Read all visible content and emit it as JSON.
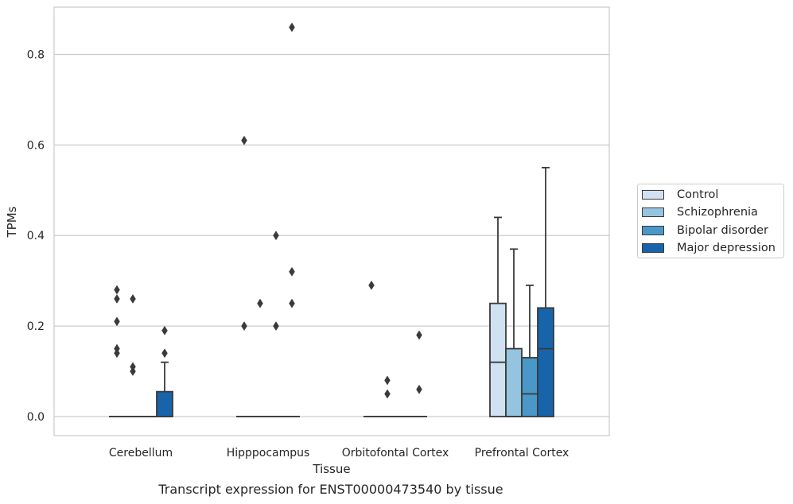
{
  "chart_data": {
    "type": "box",
    "title": "Transcript expression for ENST00000473540 by tissue",
    "xlabel": "Tissue",
    "ylabel": "TPMs",
    "ylim": [
      -0.042,
      0.905
    ],
    "yticks": [
      0.0,
      0.2,
      0.4,
      0.6,
      0.8
    ],
    "ytick_labels": [
      "0.0",
      "0.2",
      "0.4",
      "0.6",
      "0.8"
    ],
    "categories": [
      "Cerebellum",
      "Hipppocampus",
      "Orbitofontal Cortex",
      "Prefrontal Cortex"
    ],
    "grid": "horizontal",
    "legend_position": "right",
    "series": [
      {
        "name": "Control",
        "color": "#d0e1f2",
        "boxes": [
          {
            "q1": 0.0,
            "median": 0.0,
            "q3": 0.0,
            "whisker_low": 0.0,
            "whisker_high": 0.0,
            "outliers": [
              0.28,
              0.26,
              0.21,
              0.15,
              0.14
            ]
          },
          {
            "q1": 0.0,
            "median": 0.0,
            "q3": 0.0,
            "whisker_low": 0.0,
            "whisker_high": 0.0,
            "outliers": [
              0.61,
              0.2
            ]
          },
          {
            "q1": 0.0,
            "median": 0.0,
            "q3": 0.0,
            "whisker_low": 0.0,
            "whisker_high": 0.0,
            "outliers": [
              0.29
            ]
          },
          {
            "q1": 0.0,
            "median": 0.12,
            "q3": 0.25,
            "whisker_low": 0.0,
            "whisker_high": 0.44,
            "outliers": []
          }
        ]
      },
      {
        "name": "Schizophrenia",
        "color": "#94c4df",
        "boxes": [
          {
            "q1": 0.0,
            "median": 0.0,
            "q3": 0.0,
            "whisker_low": 0.0,
            "whisker_high": 0.0,
            "outliers": [
              0.26,
              0.11,
              0.1
            ]
          },
          {
            "q1": 0.0,
            "median": 0.0,
            "q3": 0.0,
            "whisker_low": 0.0,
            "whisker_high": 0.0,
            "outliers": [
              0.25
            ]
          },
          {
            "q1": 0.0,
            "median": 0.0,
            "q3": 0.0,
            "whisker_low": 0.0,
            "whisker_high": 0.0,
            "outliers": [
              0.08,
              0.05
            ]
          },
          {
            "q1": 0.0,
            "median": 0.0,
            "q3": 0.15,
            "whisker_low": 0.0,
            "whisker_high": 0.37,
            "outliers": []
          }
        ]
      },
      {
        "name": "Bipolar disorder",
        "color": "#4a98c9",
        "boxes": [
          {
            "q1": 0.0,
            "median": 0.0,
            "q3": 0.0,
            "whisker_low": 0.0,
            "whisker_high": 0.0,
            "outliers": []
          },
          {
            "q1": 0.0,
            "median": 0.0,
            "q3": 0.0,
            "whisker_low": 0.0,
            "whisker_high": 0.0,
            "outliers": [
              0.4,
              0.2
            ]
          },
          {
            "q1": 0.0,
            "median": 0.0,
            "q3": 0.0,
            "whisker_low": 0.0,
            "whisker_high": 0.0,
            "outliers": []
          },
          {
            "q1": 0.0,
            "median": 0.05,
            "q3": 0.13,
            "whisker_low": 0.0,
            "whisker_high": 0.29,
            "outliers": []
          }
        ]
      },
      {
        "name": "Major depression",
        "color": "#1764ab",
        "boxes": [
          {
            "q1": 0.0,
            "median": 0.0,
            "q3": 0.055,
            "whisker_low": 0.0,
            "whisker_high": 0.12,
            "outliers": [
              0.19,
              0.14
            ]
          },
          {
            "q1": 0.0,
            "median": 0.0,
            "q3": 0.0,
            "whisker_low": 0.0,
            "whisker_high": 0.0,
            "outliers": [
              0.86,
              0.32,
              0.25
            ]
          },
          {
            "q1": 0.0,
            "median": 0.0,
            "q3": 0.0,
            "whisker_low": 0.0,
            "whisker_high": 0.0,
            "outliers": [
              0.18,
              0.06
            ]
          },
          {
            "q1": 0.0,
            "median": 0.15,
            "q3": 0.24,
            "whisker_low": 0.0,
            "whisker_high": 0.55,
            "outliers": []
          }
        ]
      }
    ]
  },
  "colors": {
    "box_edge": "#3a3a3a",
    "grid": "#cccccc",
    "frame": "#cccccc",
    "text": "#262626"
  }
}
